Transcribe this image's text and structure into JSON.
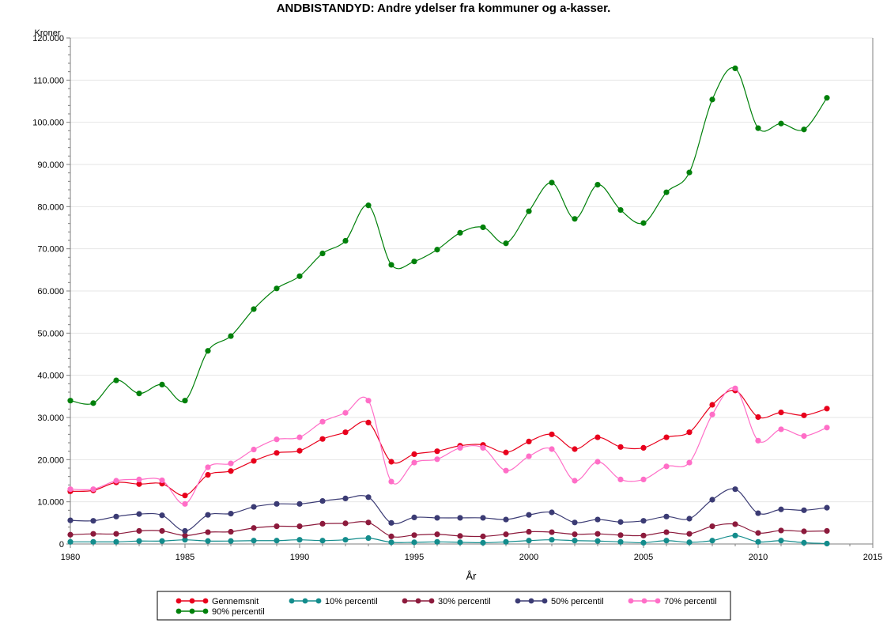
{
  "chart_data": {
    "type": "line",
    "title": "ANDBISTANDYD: Andre ydelser fra kommuner og a-kasser.",
    "xlabel": "År",
    "ylabel": "Kroner",
    "xlim": [
      1980,
      2015
    ],
    "ylim": [
      0,
      120000
    ],
    "x_ticks": [
      "1980",
      "1985",
      "1990",
      "1995",
      "2000",
      "2005",
      "2010",
      "2015"
    ],
    "y_ticks": [
      "0",
      "10.000",
      "20.000",
      "30.000",
      "40.000",
      "50.000",
      "60.000",
      "70.000",
      "80.000",
      "90.000",
      "100.000",
      "110.000",
      "120.000"
    ],
    "grid": true,
    "legend_position": "bottom",
    "x": [
      1980,
      1981,
      1982,
      1983,
      1984,
      1985,
      1986,
      1987,
      1988,
      1989,
      1990,
      1991,
      1992,
      1993,
      1994,
      1995,
      1996,
      1997,
      1998,
      1999,
      2000,
      2001,
      2002,
      2003,
      2004,
      2005,
      2006,
      2007,
      2008,
      2009,
      2010,
      2011,
      2012,
      2013
    ],
    "series": [
      {
        "name": "Gennemsnit",
        "color": "#e8001c",
        "values": [
          12500,
          12700,
          14600,
          14200,
          14300,
          11500,
          16400,
          17300,
          19700,
          21600,
          22100,
          24900,
          26500,
          28800,
          19500,
          21300,
          22000,
          23300,
          23500,
          21700,
          24300,
          26000,
          22500,
          25300,
          23000,
          22800,
          25300,
          26500,
          33000,
          36400,
          30100,
          31200,
          30500,
          32100
        ]
      },
      {
        "name": "10% percentil",
        "color": "#138c8c",
        "values": [
          500,
          500,
          500,
          700,
          700,
          1000,
          700,
          700,
          800,
          800,
          1000,
          800,
          1000,
          1400,
          400,
          400,
          500,
          400,
          300,
          500,
          800,
          1000,
          800,
          700,
          500,
          300,
          800,
          400,
          800,
          2000,
          500,
          800,
          300,
          100
        ]
      },
      {
        "name": "30% percentil",
        "color": "#8c1a3c",
        "values": [
          2200,
          2400,
          2400,
          3100,
          3100,
          2000,
          2800,
          2900,
          3800,
          4200,
          4200,
          4800,
          4900,
          5100,
          1800,
          2100,
          2300,
          1900,
          1800,
          2300,
          2900,
          2800,
          2300,
          2400,
          2100,
          2000,
          2800,
          2400,
          4200,
          4700,
          2600,
          3200,
          3000,
          3100
        ]
      },
      {
        "name": "50% percentil",
        "color": "#3b3b74",
        "values": [
          5600,
          5500,
          6500,
          7100,
          6800,
          3100,
          6900,
          7200,
          8800,
          9500,
          9500,
          10200,
          10800,
          11100,
          5000,
          6300,
          6200,
          6200,
          6200,
          5800,
          6900,
          7500,
          5100,
          5800,
          5200,
          5500,
          6500,
          6000,
          10500,
          13000,
          7300,
          8200,
          8000,
          8600
        ]
      },
      {
        "name": "70% percentil",
        "color": "#ff6ec7",
        "values": [
          13000,
          13000,
          15000,
          15300,
          15100,
          9500,
          18200,
          19100,
          22400,
          24800,
          25300,
          29000,
          31100,
          34000,
          14800,
          19300,
          20100,
          22800,
          22800,
          17400,
          20800,
          22500,
          15000,
          19500,
          15300,
          15300,
          18400,
          19300,
          30700,
          36900,
          24500,
          27200,
          25600,
          27600
        ]
      },
      {
        "name": "90% percentil",
        "color": "#00800a",
        "values": [
          34000,
          33400,
          38800,
          35700,
          37800,
          34000,
          45800,
          49300,
          55700,
          60600,
          63500,
          68900,
          71900,
          80300,
          66200,
          67000,
          69800,
          73800,
          75100,
          71300,
          78900,
          85700,
          77100,
          85200,
          79200,
          76100,
          83400,
          88100,
          105400,
          112800,
          98600,
          99700,
          98300,
          105800
        ]
      }
    ]
  }
}
